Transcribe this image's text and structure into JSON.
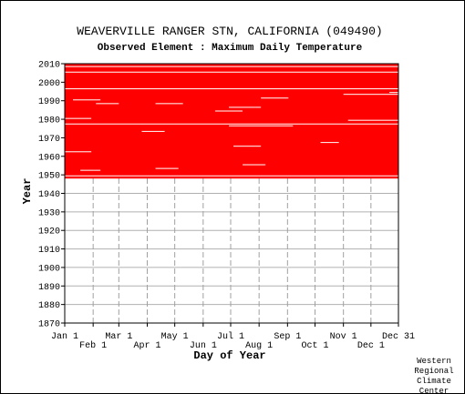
{
  "chart_data": {
    "type": "heatmap",
    "title": "WEAVERVILLE RANGER STN, CALIFORNIA    (049490)",
    "subtitle": "Observed Element : Maximum Daily Temperature",
    "xlabel": "Day of Year",
    "ylabel": "Year",
    "ylim": [
      1870,
      2010
    ],
    "y_ticks": [
      1870,
      1880,
      1890,
      1900,
      1910,
      1920,
      1930,
      1940,
      1950,
      1960,
      1970,
      1980,
      1990,
      2000,
      2010
    ],
    "x_ticks_upper": [
      "Jan 1",
      "Mar 1",
      "May 1",
      "Jul 1",
      "Sep 1",
      "Nov 1",
      "Dec 31"
    ],
    "x_ticks_lower": [
      "Feb 1",
      "Apr 1",
      "Jun 1",
      "Aug 1",
      "Oct 1",
      "Dec 1"
    ],
    "x_tick_days": [
      1,
      32,
      60,
      91,
      121,
      152,
      182,
      213,
      244,
      274,
      305,
      335,
      365
    ],
    "data_color": "#ff0000",
    "grid": "dashed vertical month lines, horizontal decade lines",
    "data_coverage": "observations present from about 1948 to 2010; gaps mostly in 1979–1996",
    "data_start_year": 1948,
    "data_end_year": 2010,
    "data_gaps": [
      {
        "year": 1949,
        "day_start": 1,
        "day_end": 365
      },
      {
        "year": 1952,
        "day_start": 18,
        "day_end": 40
      },
      {
        "year": 1953,
        "day_start": 100,
        "day_end": 125
      },
      {
        "year": 1955,
        "day_start": 195,
        "day_end": 220
      },
      {
        "year": 1962,
        "day_start": 1,
        "day_end": 30
      },
      {
        "year": 1965,
        "day_start": 185,
        "day_end": 215
      },
      {
        "year": 1967,
        "day_start": 280,
        "day_end": 300
      },
      {
        "year": 1973,
        "day_start": 85,
        "day_end": 110
      },
      {
        "year": 1976,
        "day_start": 180,
        "day_end": 250
      },
      {
        "year": 1977,
        "day_start": 1,
        "day_end": 365
      },
      {
        "year": 1979,
        "day_start": 310,
        "day_end": 365
      },
      {
        "year": 1980,
        "day_start": 1,
        "day_end": 30
      },
      {
        "year": 1984,
        "day_start": 165,
        "day_end": 195
      },
      {
        "year": 1986,
        "day_start": 180,
        "day_end": 215
      },
      {
        "year": 1988,
        "day_start": 35,
        "day_end": 60
      },
      {
        "year": 1988,
        "day_start": 100,
        "day_end": 130
      },
      {
        "year": 1990,
        "day_start": 10,
        "day_end": 40
      },
      {
        "year": 1991,
        "day_start": 215,
        "day_end": 245
      },
      {
        "year": 1993,
        "day_start": 305,
        "day_end": 365
      },
      {
        "year": 1994,
        "day_start": 355,
        "day_end": 365
      },
      {
        "year": 1996,
        "day_start": 1,
        "day_end": 365
      },
      {
        "year": 2005,
        "day_start": 1,
        "day_end": 365
      },
      {
        "year": 2008,
        "day_start": 1,
        "day_end": 365
      }
    ]
  },
  "credit": [
    "Western",
    "Regional",
    "Climate",
    "Center"
  ]
}
